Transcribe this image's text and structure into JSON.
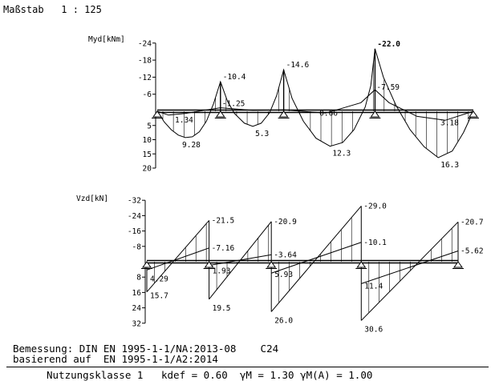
{
  "header": {
    "scale_label": "Maßstab",
    "scale_value": "1 : 125"
  },
  "chart_data": [
    {
      "type": "line",
      "ylabel": "Myd[kNm]",
      "axis_ticks": [
        "-24",
        "-18",
        "-12",
        "-6",
        "5",
        "10",
        "15",
        "20"
      ],
      "ylim": [
        -24,
        20
      ],
      "supports_x": [
        0,
        4.5,
        9,
        15.5,
        22.5
      ],
      "moment_curve": [
        {
          "x": 0,
          "y": 0
        },
        {
          "x": 0.5,
          "y": 3.8
        },
        {
          "x": 1.0,
          "y": 6.5
        },
        {
          "x": 1.5,
          "y": 8.4
        },
        {
          "x": 2.0,
          "y": 9.28
        },
        {
          "x": 2.5,
          "y": 9.0
        },
        {
          "x": 3.0,
          "y": 7.2
        },
        {
          "x": 3.5,
          "y": 3.5
        },
        {
          "x": 4.0,
          "y": -2.5
        },
        {
          "x": 4.5,
          "y": -10.4
        },
        {
          "x": 5.0,
          "y": -3.5
        },
        {
          "x": 5.5,
          "y": 0.8
        },
        {
          "x": 6.2,
          "y": 4.2
        },
        {
          "x": 6.8,
          "y": 5.3
        },
        {
          "x": 7.4,
          "y": 4.2
        },
        {
          "x": 8.0,
          "y": 0.5
        },
        {
          "x": 8.5,
          "y": -5.5
        },
        {
          "x": 9.0,
          "y": -14.6
        },
        {
          "x": 9.6,
          "y": -4.5
        },
        {
          "x": 10.4,
          "y": 3.5
        },
        {
          "x": 11.3,
          "y": 9.5
        },
        {
          "x": 12.3,
          "y": 12.3
        },
        {
          "x": 13.2,
          "y": 11.0
        },
        {
          "x": 14.0,
          "y": 6.5
        },
        {
          "x": 14.8,
          "y": -1.5
        },
        {
          "x": 15.2,
          "y": -9.0
        },
        {
          "x": 15.5,
          "y": -22.0
        },
        {
          "x": 16.1,
          "y": -12.0
        },
        {
          "x": 17.0,
          "y": -2.0
        },
        {
          "x": 18.0,
          "y": 6.5
        },
        {
          "x": 19.0,
          "y": 12.5
        },
        {
          "x": 20.0,
          "y": 16.3
        },
        {
          "x": 21.0,
          "y": 14.0
        },
        {
          "x": 21.8,
          "y": 7.5
        },
        {
          "x": 22.5,
          "y": 0
        }
      ],
      "moment_secondary": [
        {
          "x": 0,
          "y": 0
        },
        {
          "x": 0.8,
          "y": 1.34
        },
        {
          "x": 2.0,
          "y": 0.8
        },
        {
          "x": 3.3,
          "y": -0.3
        },
        {
          "x": 4.5,
          "y": -1.25
        },
        {
          "x": 6.8,
          "y": -0.3
        },
        {
          "x": 9.0,
          "y": -0.5
        },
        {
          "x": 12.0,
          "y": 0.66
        },
        {
          "x": 14.5,
          "y": -3.0
        },
        {
          "x": 15.5,
          "y": -7.59
        },
        {
          "x": 16.5,
          "y": -3.0
        },
        {
          "x": 18.5,
          "y": 1.8
        },
        {
          "x": 20.5,
          "y": 3.18
        },
        {
          "x": 22.5,
          "y": 0
        }
      ],
      "data_labels": [
        {
          "x": 0.8,
          "y": 1.34,
          "text": "1.34"
        },
        {
          "x": 2.0,
          "y": 9.28,
          "text": "9.28"
        },
        {
          "x": 4.5,
          "y": -10.4,
          "text": "-10.4"
        },
        {
          "x": 4.5,
          "y": -1.25,
          "text": "-1.25"
        },
        {
          "x": 6.8,
          "y": 5.3,
          "text": "5.3"
        },
        {
          "x": 9.0,
          "y": -14.6,
          "text": "-14.6"
        },
        {
          "x": 12.0,
          "y": 0.66,
          "text": "0.66"
        },
        {
          "x": 12.3,
          "y": 12.3,
          "text": "12.3"
        },
        {
          "x": 15.5,
          "y": -22.0,
          "text": "-22.0"
        },
        {
          "x": 15.5,
          "y": -7.59,
          "text": "-7.59"
        },
        {
          "x": 20.5,
          "y": 3.18,
          "text": "3.18"
        },
        {
          "x": 20.0,
          "y": 16.3,
          "text": "16.3"
        }
      ]
    },
    {
      "type": "line",
      "ylabel": "Vzd[kN]",
      "axis_ticks": [
        "-32",
        "-24",
        "-16",
        "-8",
        "8",
        "16",
        "24",
        "32"
      ],
      "ylim": [
        -32,
        32
      ],
      "supports_x": [
        0,
        4.5,
        9,
        15.5,
        22.5
      ],
      "shear_primary": [
        {
          "x": 0,
          "y": 15.7
        },
        {
          "x": 4.5,
          "y": -21.5
        },
        {
          "x": 4.5,
          "y": 19.5
        },
        {
          "x": 9.0,
          "y": -20.9
        },
        {
          "x": 9.0,
          "y": 26.0
        },
        {
          "x": 15.5,
          "y": -29.0
        },
        {
          "x": 15.5,
          "y": 30.6
        },
        {
          "x": 22.5,
          "y": -20.7
        }
      ],
      "shear_secondary": [
        {
          "x": 0,
          "y": 4.29
        },
        {
          "x": 4.5,
          "y": -7.16
        },
        {
          "x": 4.5,
          "y": 1.93
        },
        {
          "x": 9.0,
          "y": -3.64
        },
        {
          "x": 9.0,
          "y": 5.93
        },
        {
          "x": 15.5,
          "y": -10.1
        },
        {
          "x": 15.5,
          "y": 11.4
        },
        {
          "x": 22.5,
          "y": -5.62
        }
      ],
      "data_labels": [
        {
          "x": 0,
          "y": 4.29,
          "text": "4.29"
        },
        {
          "x": 0,
          "y": 15.7,
          "text": "15.7"
        },
        {
          "x": 4.5,
          "y": -21.5,
          "text": "-21.5"
        },
        {
          "x": 4.5,
          "y": -7.16,
          "text": "-7.16"
        },
        {
          "x": 4.5,
          "y": 1.93,
          "text": "1.93"
        },
        {
          "x": 4.5,
          "y": 19.5,
          "text": "19.5"
        },
        {
          "x": 9.0,
          "y": -20.9,
          "text": "-20.9"
        },
        {
          "x": 9.0,
          "y": -3.64,
          "text": "-3.64"
        },
        {
          "x": 9.0,
          "y": 5.93,
          "text": "5.93"
        },
        {
          "x": 9.0,
          "y": 26.0,
          "text": "26.0"
        },
        {
          "x": 15.5,
          "y": -29.0,
          "text": "-29.0"
        },
        {
          "x": 15.5,
          "y": -10.1,
          "text": "-10.1"
        },
        {
          "x": 15.5,
          "y": 11.4,
          "text": "11.4"
        },
        {
          "x": 15.5,
          "y": 30.6,
          "text": "30.6"
        },
        {
          "x": 22.5,
          "y": -20.7,
          "text": "-20.7"
        },
        {
          "x": 22.5,
          "y": -5.62,
          "text": "-5.62"
        }
      ]
    }
  ],
  "footer": {
    "line1": "Bemessung: DIN EN 1995-1-1/NA:2013-08    C24",
    "line2": "basierend auf  EN 1995-1-1/A2:2014",
    "line3": "Nutzungsklasse 1   kdef = 0.60  γM = 1.30 γM(A) = 1.00"
  }
}
